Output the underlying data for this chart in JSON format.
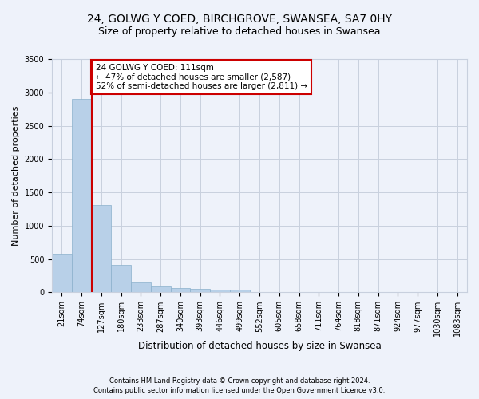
{
  "title_line1": "24, GOLWG Y COED, BIRCHGROVE, SWANSEA, SA7 0HY",
  "title_line2": "Size of property relative to detached houses in Swansea",
  "xlabel": "Distribution of detached houses by size in Swansea",
  "ylabel": "Number of detached properties",
  "bar_color": "#b8d0e8",
  "bar_edge_color": "#8ab0cc",
  "highlight_color": "#cc0000",
  "categories": [
    "21sqm",
    "74sqm",
    "127sqm",
    "180sqm",
    "233sqm",
    "287sqm",
    "340sqm",
    "393sqm",
    "446sqm",
    "499sqm",
    "552sqm",
    "605sqm",
    "658sqm",
    "711sqm",
    "764sqm",
    "818sqm",
    "871sqm",
    "924sqm",
    "977sqm",
    "1030sqm",
    "1083sqm"
  ],
  "values": [
    575,
    2900,
    1310,
    410,
    155,
    90,
    60,
    55,
    45,
    40,
    0,
    0,
    0,
    0,
    0,
    0,
    0,
    0,
    0,
    0,
    0
  ],
  "ylim": [
    0,
    3500
  ],
  "yticks": [
    0,
    500,
    1000,
    1500,
    2000,
    2500,
    3000,
    3500
  ],
  "annotation_text": "24 GOLWG Y COED: 111sqm\n← 47% of detached houses are smaller (2,587)\n52% of semi-detached houses are larger (2,811) →",
  "footer_line1": "Contains HM Land Registry data © Crown copyright and database right 2024.",
  "footer_line2": "Contains public sector information licensed under the Open Government Licence v3.0.",
  "bg_color": "#eef2fa",
  "plot_bg_color": "#eef2fa",
  "grid_color": "#c8d0de",
  "vline_x": 1.5,
  "title_fontsize": 10,
  "subtitle_fontsize": 9,
  "tick_fontsize": 7,
  "ylabel_fontsize": 8,
  "xlabel_fontsize": 8.5,
  "annot_fontsize": 7.5,
  "footer_fontsize": 6
}
